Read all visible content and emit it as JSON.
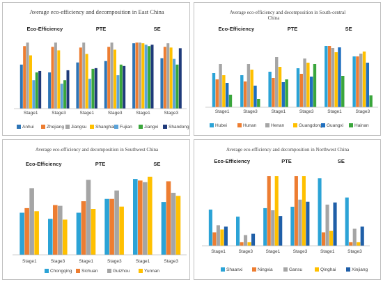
{
  "chart_data": [
    {
      "type": "bar",
      "title": "Average eco-efficiency and decomposition in East China",
      "groups": [
        "Eco-Efficiency",
        "PTE",
        "SE"
      ],
      "categories": [
        "Stage1",
        "Stage3",
        "Stage1",
        "Stage3",
        "Stage1",
        "Stage3"
      ],
      "ylim": [
        0,
        1.0
      ],
      "series": [
        {
          "name": "Anhui",
          "color": "#2e75b6",
          "values": [
            0.62,
            0.51,
            0.65,
            0.67,
            0.92,
            0.71
          ]
        },
        {
          "name": "Zhejiang",
          "color": "#ed7d31",
          "values": [
            0.88,
            0.87,
            0.86,
            0.87,
            0.93,
            0.87
          ]
        },
        {
          "name": "Jiangsu",
          "color": "#a5a5a5",
          "values": [
            0.93,
            0.93,
            0.93,
            0.93,
            0.93,
            0.92
          ]
        },
        {
          "name": "Shanghai",
          "color": "#ffc000",
          "values": [
            0.75,
            0.82,
            0.77,
            0.83,
            0.92,
            0.86
          ]
        },
        {
          "name": "Fujian",
          "color": "#5ba3d9",
          "values": [
            0.4,
            0.35,
            0.42,
            0.47,
            0.9,
            0.7
          ]
        },
        {
          "name": "Jiangxi",
          "color": "#3aa63c",
          "values": [
            0.51,
            0.4,
            0.56,
            0.62,
            0.88,
            0.62
          ]
        },
        {
          "name": "Shandong",
          "color": "#1f3a7a",
          "values": [
            0.53,
            0.54,
            0.57,
            0.6,
            0.9,
            0.85
          ]
        }
      ]
    },
    {
      "type": "bar",
      "title": "Average eco-efficiency and decomposition  in South-central China",
      "groups": [
        "Eco-Efficiency",
        "PTE",
        "SE"
      ],
      "categories": [
        "Stage1",
        "Stage3",
        "Stage1",
        "Stage3",
        "Stage1",
        "Stage3"
      ],
      "ylim": [
        0,
        1.0
      ],
      "series": [
        {
          "name": "Hubei",
          "color": "#2ba3d6",
          "values": [
            0.49,
            0.46,
            0.51,
            0.56,
            0.88,
            0.73
          ]
        },
        {
          "name": "Hunan",
          "color": "#ed7d31",
          "values": [
            0.4,
            0.37,
            0.42,
            0.48,
            0.88,
            0.73
          ]
        },
        {
          "name": "Henan",
          "color": "#a5a5a5",
          "values": [
            0.62,
            0.62,
            0.72,
            0.7,
            0.85,
            0.77
          ]
        },
        {
          "name": "Guangdong",
          "color": "#ffc000",
          "values": [
            0.46,
            0.54,
            0.58,
            0.64,
            0.79,
            0.8
          ]
        },
        {
          "name": "Guangxi",
          "color": "#1f6fbf",
          "values": [
            0.35,
            0.31,
            0.36,
            0.44,
            0.86,
            0.64
          ]
        },
        {
          "name": "Hainan",
          "color": "#3aa63c",
          "values": [
            0.18,
            0.12,
            0.4,
            0.62,
            0.45,
            0.17
          ]
        }
      ]
    },
    {
      "type": "bar",
      "title": "Average eco-efficiency and decomposition  in Southwest China",
      "groups": [
        "Eco-Efficiency",
        "PTE",
        "SE"
      ],
      "categories": [
        "Stage1",
        "Stage3",
        "Stage1",
        "Stage3",
        "Stage1",
        "Stage3"
      ],
      "ylim": [
        0,
        1.0
      ],
      "series": [
        {
          "name": "Chongqing",
          "color": "#2ba3d6",
          "values": [
            0.55,
            0.47,
            0.55,
            0.73,
            0.99,
            0.69
          ]
        },
        {
          "name": "Sichuan",
          "color": "#ed7d31",
          "values": [
            0.61,
            0.65,
            0.7,
            0.73,
            0.97,
            0.96
          ]
        },
        {
          "name": "Guizhou",
          "color": "#a5a5a5",
          "values": [
            0.87,
            0.64,
            0.98,
            0.84,
            0.95,
            0.81
          ]
        },
        {
          "name": "Yunnan",
          "color": "#ffc000",
          "values": [
            0.57,
            0.46,
            0.6,
            0.63,
            1.02,
            0.77
          ]
        }
      ]
    },
    {
      "type": "bar",
      "title": "Average eco-efficiency and decomposition  in Northwest China",
      "groups": [
        "Eco-Efficiency",
        "PTE",
        "SE"
      ],
      "categories": [
        "Stage1",
        "Stage3",
        "Stage1",
        "Stage3",
        "Stage1",
        "Stage3"
      ],
      "ylim": [
        0,
        1.0
      ],
      "series": [
        {
          "name": "Shaanxi",
          "color": "#2ba3d6",
          "values": [
            0.51,
            0.41,
            0.53,
            0.55,
            0.95,
            0.68
          ]
        },
        {
          "name": "Ningxia",
          "color": "#ed7d31",
          "values": [
            0.19,
            0.05,
            0.98,
            0.98,
            0.19,
            0.05
          ]
        },
        {
          "name": "Gansu",
          "color": "#a5a5a5",
          "values": [
            0.29,
            0.15,
            0.5,
            0.65,
            0.58,
            0.24
          ]
        },
        {
          "name": "Qinghai",
          "color": "#ffc000",
          "values": [
            0.23,
            0.05,
            0.98,
            0.98,
            0.21,
            0.05
          ]
        },
        {
          "name": "Xinjiang",
          "color": "#1f5fa8",
          "values": [
            0.27,
            0.17,
            0.42,
            0.62,
            0.61,
            0.27
          ]
        }
      ]
    }
  ]
}
